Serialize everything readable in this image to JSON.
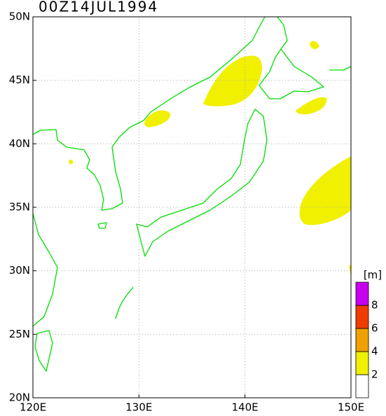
{
  "map": {
    "title": "00Z14JUL1994",
    "lon_ticks": [
      {
        "value": 120,
        "label": "120E"
      },
      {
        "value": 130,
        "label": "130E"
      },
      {
        "value": 140,
        "label": "140E"
      },
      {
        "value": 150,
        "label": "150E"
      }
    ],
    "lat_ticks": [
      {
        "value": 20,
        "label": "20N"
      },
      {
        "value": 25,
        "label": "25N"
      },
      {
        "value": 30,
        "label": "30N"
      },
      {
        "value": 35,
        "label": "35N"
      },
      {
        "value": 40,
        "label": "40N"
      },
      {
        "value": 45,
        "label": "45N"
      },
      {
        "value": 50,
        "label": "50N"
      }
    ],
    "colorbar": {
      "unit": "[m]",
      "levels": [
        2,
        4,
        6,
        8
      ],
      "colors": [
        "#ffffff",
        "#f0f000",
        "#f0a000",
        "#f03c00",
        "#c800f0"
      ]
    }
  }
}
